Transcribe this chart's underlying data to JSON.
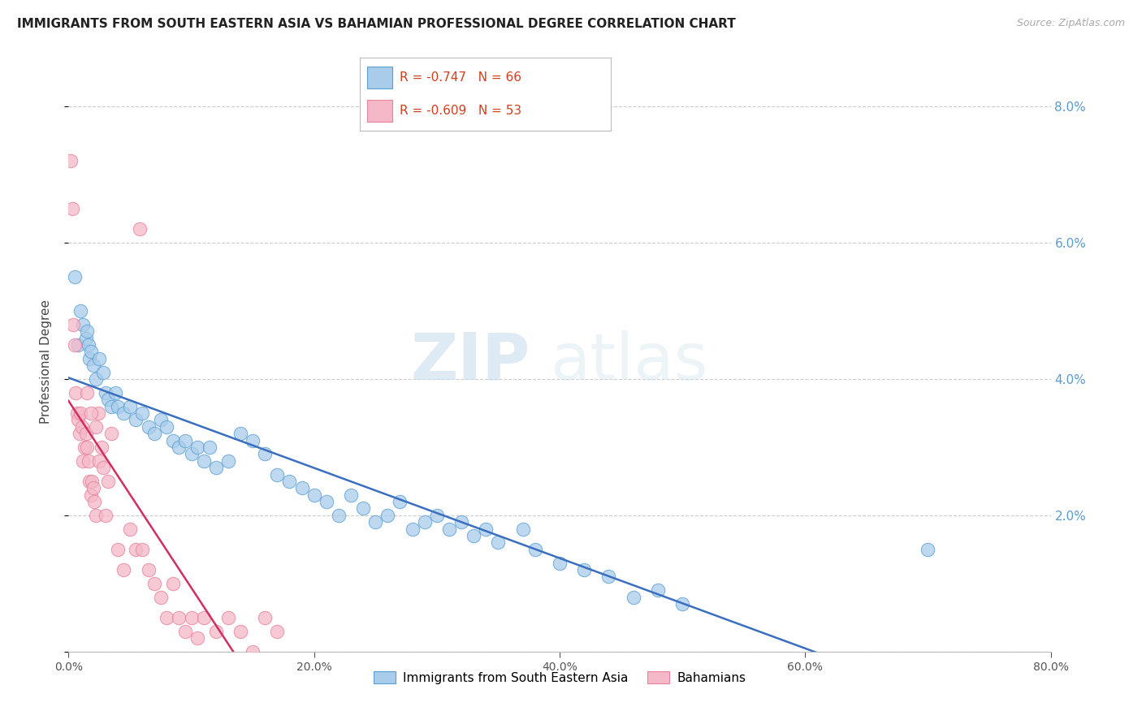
{
  "title": "IMMIGRANTS FROM SOUTH EASTERN ASIA VS BAHAMIAN PROFESSIONAL DEGREE CORRELATION CHART",
  "source": "Source: ZipAtlas.com",
  "ylabel_left": "Professional Degree",
  "xlim": [
    0,
    80
  ],
  "ylim": [
    0,
    8.5
  ],
  "blue_R": "-0.747",
  "blue_N": "66",
  "pink_R": "-0.609",
  "pink_N": "53",
  "blue_color": "#A8CCEA",
  "pink_color": "#F5B8C8",
  "blue_edge_color": "#5A9FD4",
  "pink_edge_color": "#E8829A",
  "blue_line_color": "#3A6FC0",
  "pink_line_color": "#D03060",
  "legend_label_blue": "Immigrants from South Eastern Asia",
  "legend_label_pink": "Bahamians",
  "watermark_zip": "ZIP",
  "watermark_atlas": "atlas",
  "title_fontsize": 11,
  "right_tick_color": "#5B9BD5",
  "legend_text_color": "#1A3A8A",
  "legend_value_color": "#D04020",
  "blue_x": [
    0.5,
    0.8,
    1.0,
    1.2,
    1.4,
    1.5,
    1.6,
    1.7,
    1.8,
    2.0,
    2.2,
    2.5,
    2.8,
    3.0,
    3.2,
    3.5,
    3.8,
    4.0,
    4.5,
    5.0,
    5.5,
    6.0,
    6.5,
    7.0,
    7.5,
    8.0,
    8.5,
    9.0,
    9.5,
    10.0,
    10.5,
    11.0,
    11.5,
    12.0,
    13.0,
    14.0,
    15.0,
    16.0,
    17.0,
    18.0,
    19.0,
    20.0,
    21.0,
    22.0,
    23.0,
    24.0,
    25.0,
    26.0,
    27.0,
    28.0,
    29.0,
    30.0,
    31.0,
    32.0,
    33.0,
    34.0,
    35.0,
    37.0,
    38.0,
    40.0,
    42.0,
    44.0,
    46.0,
    48.0,
    50.0,
    70.0
  ],
  "blue_y": [
    5.5,
    4.5,
    5.0,
    4.8,
    4.6,
    4.7,
    4.5,
    4.3,
    4.4,
    4.2,
    4.0,
    4.3,
    4.1,
    3.8,
    3.7,
    3.6,
    3.8,
    3.6,
    3.5,
    3.6,
    3.4,
    3.5,
    3.3,
    3.2,
    3.4,
    3.3,
    3.1,
    3.0,
    3.1,
    2.9,
    3.0,
    2.8,
    3.0,
    2.7,
    2.8,
    3.2,
    3.1,
    2.9,
    2.6,
    2.5,
    2.4,
    2.3,
    2.2,
    2.0,
    2.3,
    2.1,
    1.9,
    2.0,
    2.2,
    1.8,
    1.9,
    2.0,
    1.8,
    1.9,
    1.7,
    1.8,
    1.6,
    1.8,
    1.5,
    1.3,
    1.2,
    1.1,
    0.8,
    0.9,
    0.7,
    1.5
  ],
  "pink_x": [
    0.2,
    0.3,
    0.4,
    0.5,
    0.6,
    0.7,
    0.8,
    0.9,
    1.0,
    1.1,
    1.2,
    1.3,
    1.4,
    1.5,
    1.6,
    1.7,
    1.8,
    1.9,
    2.0,
    2.1,
    2.2,
    2.4,
    2.5,
    2.7,
    3.0,
    3.5,
    4.0,
    4.5,
    5.0,
    5.5,
    6.0,
    6.5,
    7.0,
    7.5,
    8.0,
    8.5,
    9.0,
    9.5,
    10.0,
    10.5,
    11.0,
    12.0,
    13.0,
    14.0,
    15.0,
    16.0,
    17.0,
    3.2,
    2.8,
    1.8,
    2.2,
    1.5,
    5.8
  ],
  "pink_y": [
    7.2,
    6.5,
    4.8,
    4.5,
    3.8,
    3.5,
    3.4,
    3.2,
    3.5,
    3.3,
    2.8,
    3.0,
    3.2,
    3.0,
    2.8,
    2.5,
    2.3,
    2.5,
    2.4,
    2.2,
    2.0,
    3.5,
    2.8,
    3.0,
    2.0,
    3.2,
    1.5,
    1.2,
    1.8,
    1.5,
    1.5,
    1.2,
    1.0,
    0.8,
    0.5,
    1.0,
    0.5,
    0.3,
    0.5,
    0.2,
    0.5,
    0.3,
    0.5,
    0.3,
    0.0,
    0.5,
    0.3,
    2.5,
    2.7,
    3.5,
    3.3,
    3.8,
    6.2
  ]
}
